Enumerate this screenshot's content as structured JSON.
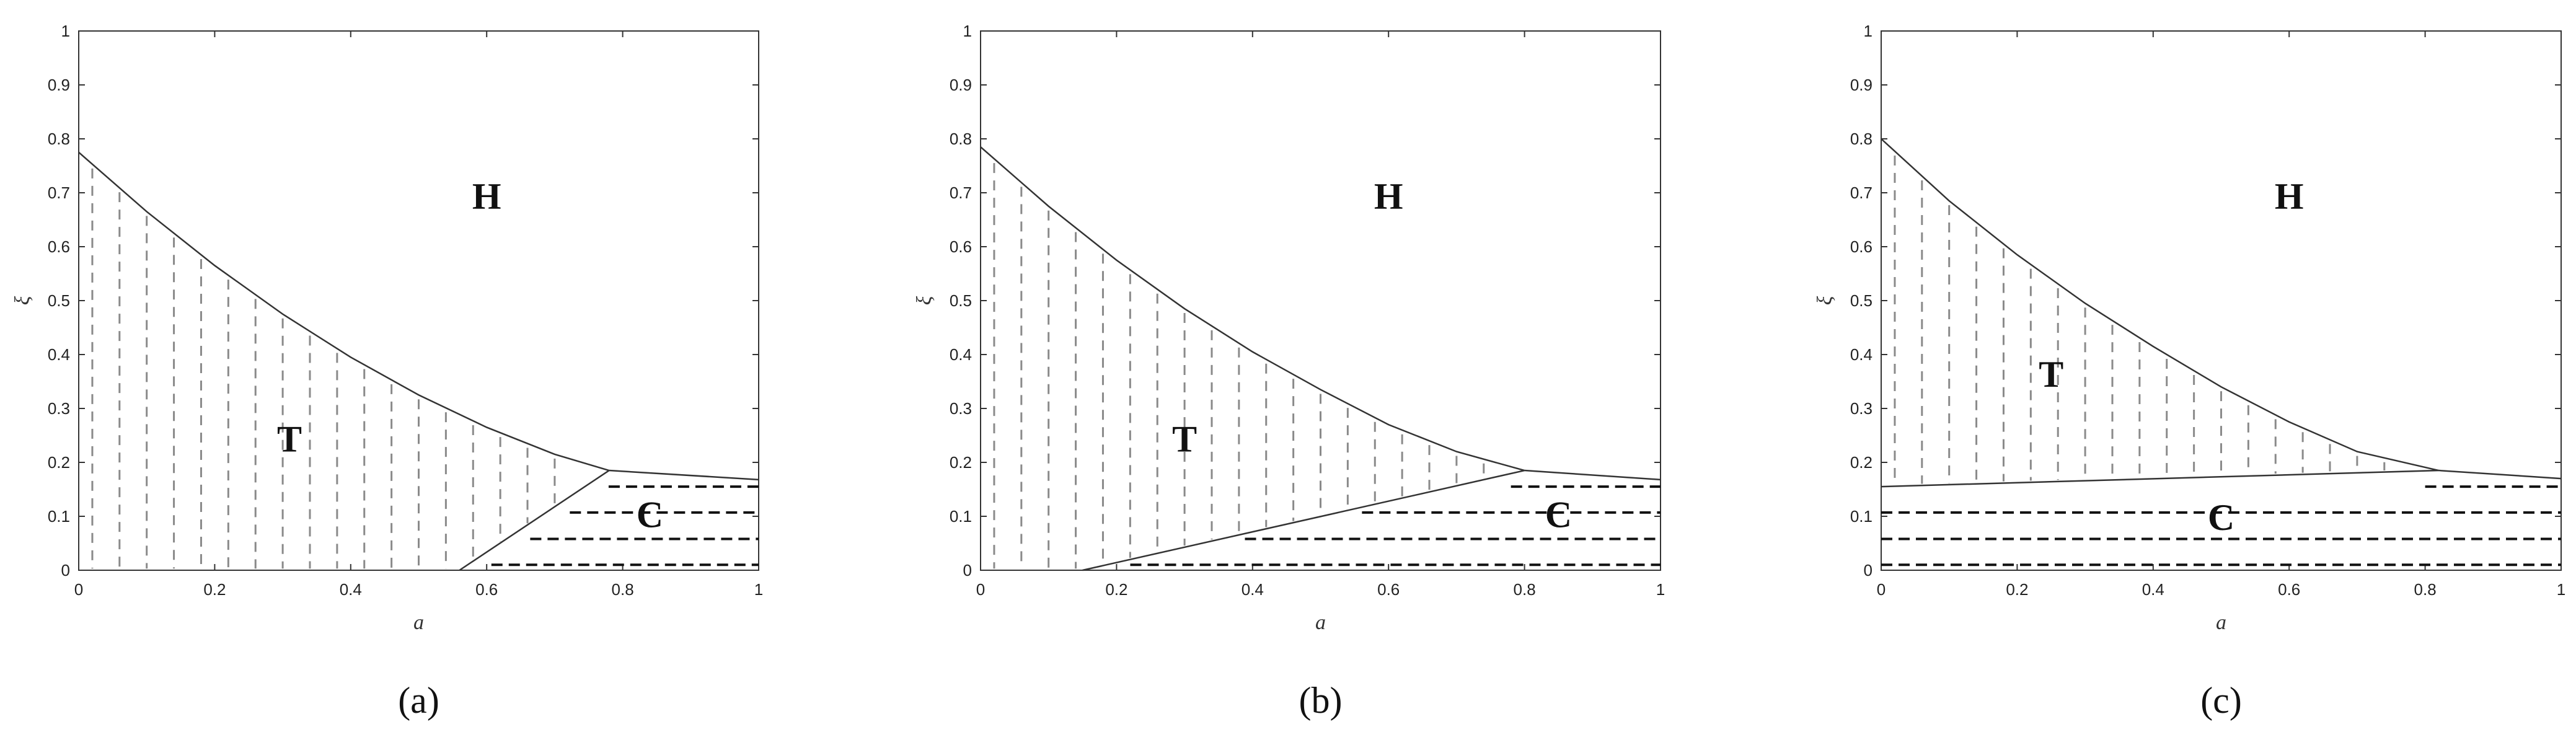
{
  "chart_data": [
    {
      "type": "line",
      "caption": "(a)",
      "xlabel": "a",
      "ylabel": "ξ",
      "xlim": [
        0,
        1
      ],
      "ylim": [
        0,
        1
      ],
      "xticks": [
        "0",
        "0.2",
        "0.4",
        "0.6",
        "0.8",
        "1"
      ],
      "yticks": [
        "0",
        "0.1",
        "0.2",
        "0.3",
        "0.4",
        "0.5",
        "0.6",
        "0.7",
        "0.8",
        "0.9",
        "1"
      ],
      "grid": false,
      "boundaries": [
        {
          "x": [
            0,
            0.1,
            0.2,
            0.3,
            0.4,
            0.5,
            0.6,
            0.7,
            0.78
          ],
          "y": [
            0.775,
            0.665,
            0.565,
            0.475,
            0.395,
            0.325,
            0.265,
            0.215,
            0.185
          ]
        },
        {
          "x": [
            0.78,
            1.0
          ],
          "y": [
            0.185,
            0.168
          ]
        },
        {
          "x": [
            0.56,
            0.78
          ],
          "y": [
            0.0,
            0.185
          ]
        }
      ],
      "regions": [
        {
          "label": "H",
          "x": 0.6,
          "y": 0.67
        },
        {
          "label": "T",
          "x": 0.31,
          "y": 0.22
        },
        {
          "label": "C",
          "x": 0.84,
          "y": 0.08
        }
      ],
      "c_hatch_levels": [
        0.155,
        0.107,
        0.058,
        0.01
      ],
      "t_hatch_region": {
        "x0": 0.02,
        "x1": 0.72,
        "dx": 0.04,
        "upper": "curve",
        "lower": {
          "x": [
            0.56,
            0.78
          ],
          "y": [
            0.0,
            0.185
          ]
        }
      }
    },
    {
      "type": "line",
      "caption": "(b)",
      "xlabel": "a",
      "ylabel": "ξ",
      "xlim": [
        0,
        1
      ],
      "ylim": [
        0,
        1
      ],
      "xticks": [
        "0",
        "0.2",
        "0.4",
        "0.6",
        "0.8",
        "1"
      ],
      "yticks": [
        "0",
        "0.1",
        "0.2",
        "0.3",
        "0.4",
        "0.5",
        "0.6",
        "0.7",
        "0.8",
        "0.9",
        "1"
      ],
      "grid": false,
      "boundaries": [
        {
          "x": [
            0,
            0.1,
            0.2,
            0.3,
            0.4,
            0.5,
            0.6,
            0.7,
            0.8
          ],
          "y": [
            0.785,
            0.675,
            0.575,
            0.485,
            0.405,
            0.335,
            0.27,
            0.22,
            0.185
          ]
        },
        {
          "x": [
            0.8,
            1.0
          ],
          "y": [
            0.185,
            0.168
          ]
        },
        {
          "x": [
            0.15,
            0.8
          ],
          "y": [
            0.0,
            0.185
          ]
        }
      ],
      "regions": [
        {
          "label": "H",
          "x": 0.6,
          "y": 0.67
        },
        {
          "label": "T",
          "x": 0.3,
          "y": 0.22
        },
        {
          "label": "C",
          "x": 0.85,
          "y": 0.08
        }
      ],
      "c_hatch_levels": [
        0.155,
        0.107,
        0.058,
        0.01
      ],
      "t_hatch_region": {
        "x0": 0.02,
        "x1": 0.74,
        "dx": 0.04,
        "upper": "curve",
        "lower": {
          "x": [
            0.15,
            0.8
          ],
          "y": [
            0.0,
            0.185
          ]
        }
      }
    },
    {
      "type": "line",
      "caption": "(c)",
      "xlabel": "a",
      "ylabel": "ξ",
      "xlim": [
        0,
        1
      ],
      "ylim": [
        0,
        1
      ],
      "xticks": [
        "0",
        "0.2",
        "0.4",
        "0.6",
        "0.8",
        "1"
      ],
      "yticks": [
        "0",
        "0.1",
        "0.2",
        "0.3",
        "0.4",
        "0.5",
        "0.6",
        "0.7",
        "0.8",
        "0.9",
        "1"
      ],
      "grid": false,
      "boundaries": [
        {
          "x": [
            0,
            0.1,
            0.2,
            0.3,
            0.4,
            0.5,
            0.6,
            0.7,
            0.82
          ],
          "y": [
            0.8,
            0.685,
            0.585,
            0.495,
            0.415,
            0.34,
            0.275,
            0.22,
            0.185
          ]
        },
        {
          "x": [
            0.82,
            1.0
          ],
          "y": [
            0.185,
            0.17
          ]
        },
        {
          "x": [
            0.0,
            0.82
          ],
          "y": [
            0.155,
            0.185
          ]
        }
      ],
      "regions": [
        {
          "label": "H",
          "x": 0.6,
          "y": 0.67
        },
        {
          "label": "T",
          "x": 0.25,
          "y": 0.34
        },
        {
          "label": "C",
          "x": 0.5,
          "y": 0.075
        }
      ],
      "c_hatch_levels": [
        0.155,
        0.107,
        0.058,
        0.01
      ],
      "t_hatch_region": {
        "x0": 0.02,
        "x1": 0.78,
        "dx": 0.04,
        "upper": "curve",
        "lower": {
          "x": [
            0.0,
            0.82
          ],
          "y": [
            0.155,
            0.185
          ]
        }
      }
    }
  ]
}
